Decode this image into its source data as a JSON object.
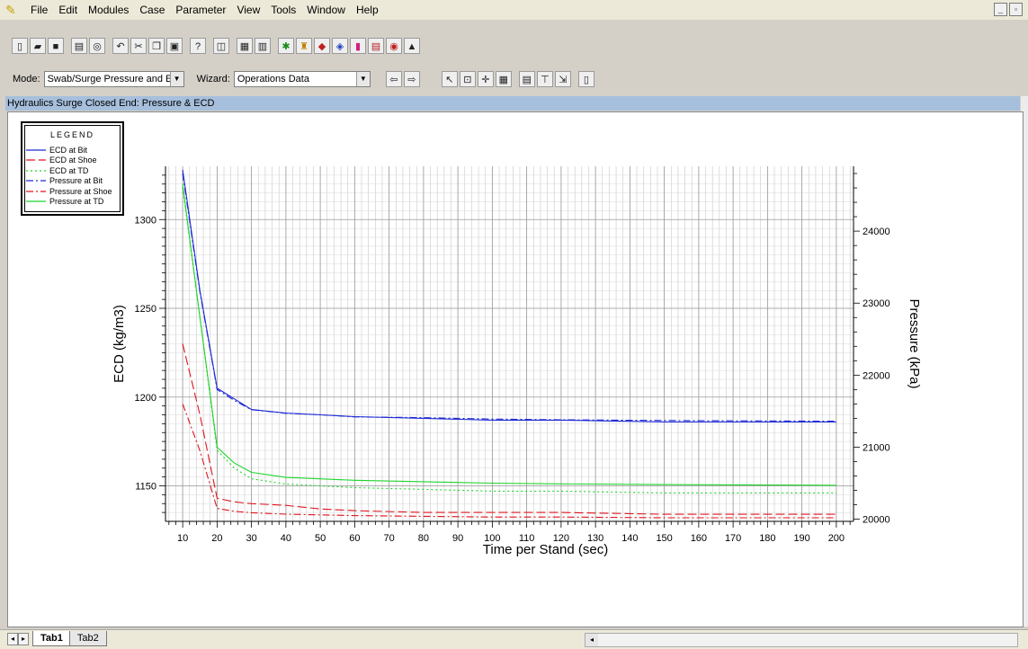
{
  "menubar": {
    "items": [
      "File",
      "Edit",
      "Modules",
      "Case",
      "Parameter",
      "View",
      "Tools",
      "Window",
      "Help"
    ]
  },
  "toolbar2": {
    "mode_label": "Mode:",
    "mode_value": "Swab/Surge Pressure and ECD",
    "wizard_label": "Wizard:",
    "wizard_value": "Operations Data"
  },
  "pane": {
    "title": "Hydraulics Surge Closed End: Pressure & ECD"
  },
  "tabs": [
    "Tab1",
    "Tab2"
  ],
  "legend": {
    "title": "LEGEND",
    "entries": [
      {
        "name": "ECD at Bit",
        "color": "#1f2bd6",
        "dash": "solid"
      },
      {
        "name": "ECD at Shoe",
        "color": "#e0141e",
        "dash": "longdash"
      },
      {
        "name": "ECD at TD",
        "color": "#1fd42a",
        "dash": "dot"
      },
      {
        "name": "Pressure at Bit",
        "color": "#1f2bd6",
        "dash": "dashdot"
      },
      {
        "name": "Pressure at Shoe",
        "color": "#e0141e",
        "dash": "dashdot"
      },
      {
        "name": "Pressure at TD",
        "color": "#1fd42a",
        "dash": "solid"
      }
    ]
  },
  "chart_data": {
    "type": "line",
    "title": "",
    "xlabel": "Time per Stand (sec)",
    "ylabel": "ECD (kg/m3)",
    "y2label": "Pressure (kPa)",
    "xlim": [
      5,
      205
    ],
    "ylim": [
      1130,
      1330
    ],
    "y2lim": [
      19970,
      24900
    ],
    "xticks": [
      10,
      20,
      30,
      40,
      50,
      60,
      70,
      80,
      90,
      100,
      110,
      120,
      130,
      140,
      150,
      160,
      170,
      180,
      190,
      200
    ],
    "yticks": [
      1150,
      1200,
      1250,
      1300
    ],
    "y2ticks": [
      20000,
      21000,
      22000,
      23000,
      24000
    ],
    "grid": true,
    "legend_position": "top-left",
    "series": [
      {
        "name": "ECD at Bit",
        "axis": "left",
        "x": [
          10,
          15,
          20,
          25,
          30,
          40,
          50,
          60,
          80,
          100,
          120,
          150,
          200
        ],
        "values": [
          1328,
          1260,
          1205,
          1199,
          1193,
          1191,
          1190,
          1189,
          1188,
          1187,
          1187,
          1186,
          1186
        ]
      },
      {
        "name": "Pressure at Bit",
        "axis": "right",
        "x": [
          10,
          15,
          20,
          25,
          30,
          40,
          50,
          60,
          80,
          100,
          120,
          150,
          200
        ],
        "values": [
          24800,
          23150,
          21800,
          21650,
          21520,
          21470,
          21450,
          21420,
          21410,
          21390,
          21380,
          21370,
          21360
        ]
      },
      {
        "name": "ECD at TD",
        "axis": "left",
        "x": [
          10,
          15,
          20,
          25,
          30,
          40,
          50,
          60,
          80,
          100,
          120,
          150,
          200
        ],
        "values": [
          1318,
          1245,
          1170,
          1160,
          1154,
          1151,
          1150,
          1149,
          1148,
          1147,
          1147,
          1146,
          1146
        ]
      },
      {
        "name": "Pressure at TD",
        "axis": "right",
        "x": [
          10,
          15,
          20,
          25,
          30,
          40,
          50,
          60,
          80,
          100,
          120,
          150,
          200
        ],
        "values": [
          24650,
          22800,
          21000,
          20780,
          20650,
          20580,
          20560,
          20540,
          20520,
          20500,
          20490,
          20480,
          20470
        ]
      },
      {
        "name": "ECD at Shoe",
        "axis": "left",
        "x": [
          10,
          15,
          20,
          25,
          30,
          40,
          50,
          60,
          80,
          100,
          120,
          150,
          200
        ],
        "values": [
          1230,
          1190,
          1143,
          1141,
          1140,
          1139,
          1137,
          1136,
          1135,
          1135,
          1135,
          1134,
          1134
        ]
      },
      {
        "name": "Pressure at Shoe",
        "axis": "right",
        "x": [
          10,
          15,
          20,
          25,
          30,
          40,
          50,
          60,
          80,
          100,
          120,
          150,
          200
        ],
        "values": [
          21600,
          20950,
          20150,
          20110,
          20090,
          20070,
          20060,
          20050,
          20040,
          20030,
          20030,
          20020,
          20020
        ]
      }
    ]
  }
}
